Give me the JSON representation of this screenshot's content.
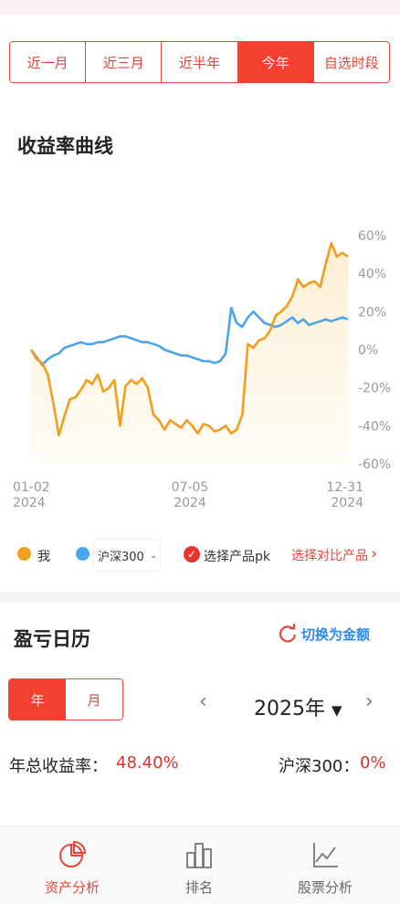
{
  "period_tabs": [
    {
      "label": "近一月",
      "active": false
    },
    {
      "label": "近三月",
      "active": false
    },
    {
      "label": "近半年",
      "active": false
    },
    {
      "label": "今年",
      "active": true
    },
    {
      "label": "自选时段",
      "active": false
    }
  ],
  "returns_section": {
    "title": "收益率曲线"
  },
  "chart_data": {
    "type": "line",
    "title": "",
    "xlabel": "",
    "ylabel": "",
    "ylim": [
      -60,
      60
    ],
    "y_ticks": [
      "60%",
      "40%",
      "20%",
      "0%",
      "-20%",
      "-40%",
      "-60%"
    ],
    "x_ticks": [
      {
        "date": "01-02",
        "year": "2024"
      },
      {
        "date": "07-05",
        "year": "2024"
      },
      {
        "date": "12-31",
        "year": "2024"
      }
    ],
    "x_range": [
      "2024-01-02",
      "2024-12-31"
    ],
    "grid": false,
    "area_fill_series": "我",
    "series": [
      {
        "name": "我",
        "color": "#f29d1c",
        "values": [
          0,
          -5,
          -7,
          -13,
          -28,
          -45,
          -35,
          -26,
          -25,
          -21,
          -16,
          -18,
          -13,
          -22,
          -20,
          -16,
          -40,
          -19,
          -16,
          -18,
          -15,
          -20,
          -34,
          -37,
          -42,
          -37,
          -39,
          -41,
          -37,
          -40,
          -44,
          -39,
          -40,
          -43,
          -42,
          -40,
          -44,
          -42,
          -34,
          3,
          1,
          5,
          6,
          10,
          18,
          20,
          23,
          28,
          37,
          33,
          35,
          36,
          33,
          45,
          56,
          49,
          51,
          49
        ]
      },
      {
        "name": "沪深300",
        "color": "#4da3ea",
        "values": [
          0,
          -4,
          -8,
          -5,
          -3,
          -2,
          1,
          2,
          3,
          4,
          3,
          3,
          4,
          4,
          5,
          6,
          7,
          7,
          6,
          5,
          4,
          4,
          3,
          2,
          0,
          -1,
          -2,
          -3,
          -3,
          -4,
          -5,
          -6,
          -6,
          -7,
          -6,
          -2,
          22,
          14,
          12,
          17,
          20,
          17,
          14,
          13,
          12,
          13,
          15,
          17,
          14,
          16,
          13,
          14,
          15,
          16,
          15,
          16,
          17,
          16
        ]
      }
    ]
  },
  "legend": {
    "mine_label": "我",
    "mine_color": "#f29d1c",
    "bench_label": "沪深300",
    "bench_color": "#4da3ea",
    "pk_label": "选择产品pk",
    "compare_label": "选择对比产品"
  },
  "calendar": {
    "title": "盈亏日历",
    "switch_label": "切换为金额",
    "year_tab": "年",
    "month_tab": "月",
    "year_value": "2025年",
    "total_label": "年总收益率：",
    "total_value": "48.40%",
    "bench_label": "沪深300：",
    "bench_value": "0%"
  },
  "tabbar": [
    {
      "label": "资产分析",
      "icon": "pie-chart-icon",
      "active": true
    },
    {
      "label": "排名",
      "icon": "bar-ranking-icon",
      "active": false
    },
    {
      "label": "股票分析",
      "icon": "line-chart-icon",
      "active": false
    }
  ],
  "colors": {
    "accent": "#e2473d",
    "active_fill": "#f4402f",
    "link_blue": "#2e8ae6"
  }
}
